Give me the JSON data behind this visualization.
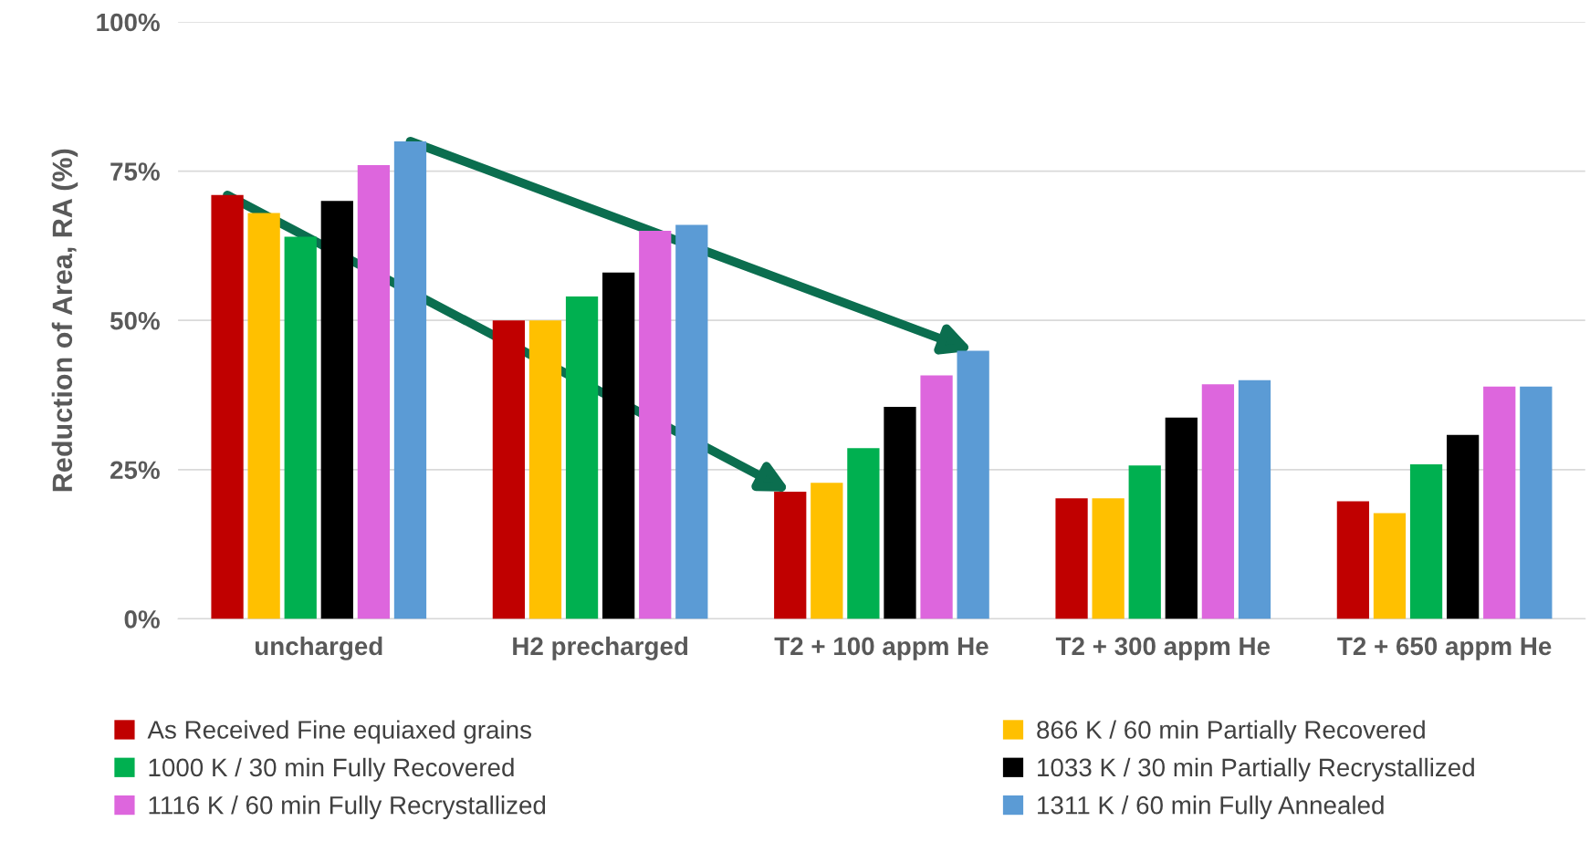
{
  "chart_data": {
    "type": "bar",
    "ylabel": "Reduction of Area, RA (%)",
    "categories": [
      "uncharged",
      "H2 precharged",
      "T2 + 100 appm He",
      "T2 + 300 appm He",
      "T2 + 650 appm He"
    ],
    "series": [
      {
        "name": "As Received Fine equiaxed grains",
        "color": "#c00000",
        "values": [
          71,
          50,
          21.3,
          20.2,
          19.7
        ]
      },
      {
        "name": "866 K / 60 min Partially Recovered",
        "color": "#ffc000",
        "values": [
          68,
          50,
          22.8,
          20.2,
          17.7
        ]
      },
      {
        "name": "1000 K / 30 min Fully Recovered",
        "color": "#00b050",
        "values": [
          64,
          54,
          28.6,
          25.7,
          25.9
        ]
      },
      {
        "name": "1033 K / 30 min Partially Recrystallized",
        "color": "#000000",
        "values": [
          70,
          58,
          35.5,
          33.7,
          30.8
        ]
      },
      {
        "name": "1116 K / 60 min Fully Recrystallized",
        "color": "#dd66dd",
        "values": [
          76,
          65,
          40.8,
          39.3,
          38.9
        ]
      },
      {
        "name": "1311 K / 60 min Fully Annealed",
        "color": "#5b9bd5",
        "values": [
          80,
          66,
          44.9,
          40.0,
          38.9
        ]
      }
    ],
    "ylim": [
      0,
      100
    ],
    "yticks": [
      {
        "value": 0,
        "label": "0%"
      },
      {
        "value": 25,
        "label": "25%"
      },
      {
        "value": 50,
        "label": "50%"
      },
      {
        "value": 75,
        "label": "75%"
      },
      {
        "value": 100,
        "label": "100%"
      }
    ],
    "grid": "y",
    "legend": "bottom"
  }
}
